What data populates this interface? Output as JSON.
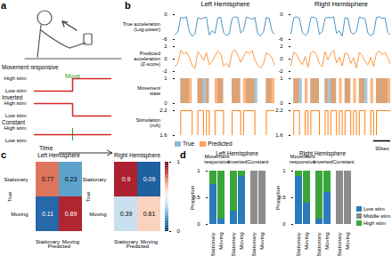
{
  "chart_data": [
    {
      "panel": "a",
      "type": "step",
      "x_label": "Time",
      "annotation": "Move",
      "move_x": 1,
      "x": [
        0,
        1,
        2
      ],
      "xlim": [
        0,
        2
      ],
      "ylim": [
        0,
        1
      ],
      "yticks": [
        {
          "value": 1,
          "label": "High stim"
        },
        {
          "value": 0,
          "label": "Low stim"
        }
      ],
      "tick_labels": "y",
      "series": [
        {
          "name": "Movement responsive",
          "color": "#d62728",
          "values": [
            0,
            1,
            1
          ]
        },
        {
          "name": "Inverted",
          "color": "#d62728",
          "values": [
            1,
            0,
            0
          ]
        },
        {
          "name": "Constant",
          "color": "#d62728",
          "values": [
            0.5,
            0.5,
            0.5
          ]
        }
      ]
    },
    {
      "panel": "b",
      "type": "line",
      "x": [
        0,
        5,
        10,
        15,
        20,
        25,
        30,
        35,
        40,
        45,
        50,
        55,
        60,
        65,
        70,
        75,
        80,
        85,
        90,
        95,
        100,
        105,
        110,
        115,
        120,
        125,
        130,
        135,
        140,
        145,
        150,
        155,
        160,
        165,
        170,
        175
      ],
      "xlim": [
        0,
        175
      ],
      "tick_labels": "y",
      "legend": "bottom",
      "scale_bar": {
        "value": 30,
        "label": "30sec"
      },
      "rows": [
        {
          "label": [
            "True acceleration",
            "(Log-power)"
          ],
          "type": "line",
          "ylim": [
            -6,
            0
          ],
          "yticks": [
            -6,
            0
          ]
        },
        {
          "label": [
            "Predicted",
            "acceleration",
            "(Z-score)"
          ],
          "type": "line",
          "ylim": [
            -2,
            2
          ],
          "yticks": [
            -2,
            0,
            2
          ]
        },
        {
          "label": [
            "Movement",
            "state"
          ],
          "type": "area",
          "ylim": [
            0,
            1
          ],
          "yticks": [
            0,
            1
          ]
        },
        {
          "label": [
            "Stimulation",
            "(mA)"
          ],
          "type": "step",
          "ylim": [
            1.6,
            2.2
          ],
          "yticks": [
            1.6,
            2.2
          ]
        }
      ],
      "hemispheres": [
        {
          "title": "Left Hemisphere",
          "rows": [
            [
              {
                "color": "#1f77b4",
                "values": [
                  -4.8,
                  -4.2,
                  -0.6,
                  -0.9,
                  -0.5,
                  -4.1,
                  -5.2,
                  -4.6,
                  -0.7,
                  -1.0,
                  -0.8,
                  -0.6,
                  -4.9,
                  -3.9,
                  -4.5,
                  -0.8,
                  -0.6,
                  -4.3,
                  -5.0,
                  -4.7,
                  -0.9,
                  -0.5,
                  -0.7,
                  -4.4,
                  -3.8,
                  -0.6,
                  -0.8,
                  -1.1,
                  -0.7,
                  -4.6,
                  -5.1,
                  -4.2,
                  -0.7,
                  -0.9,
                  -4.0,
                  -4.8
                ]
              }
            ],
            [
              {
                "color": "#ff7f0e",
                "values": [
                  -1.2,
                  -0.6,
                  1.4,
                  0.8,
                  1.1,
                  0.3,
                  -1.0,
                  -1.5,
                  1.2,
                  0.6,
                  -0.2,
                  1.0,
                  -0.9,
                  -0.4,
                  0.5,
                  1.3,
                  0.9,
                  -1.1,
                  -0.7,
                  -1.3,
                  1.1,
                  1.5,
                  0.7,
                  -0.5,
                  0.4,
                  1.2,
                  0.9,
                  1.4,
                  -0.1,
                  -1.0,
                  -1.4,
                  -0.8,
                  1.0,
                  0.7,
                  0.2,
                  -1.2
                ]
              }
            ],
            [
              {
                "name": "True",
                "color": "#6baed6",
                "values": [
                  0,
                  0,
                  1,
                  1,
                  1,
                  0,
                  0,
                  0,
                  1,
                  1,
                  1,
                  1,
                  0,
                  0,
                  0,
                  1,
                  1,
                  0,
                  0,
                  0,
                  1,
                  1,
                  1,
                  0,
                  0,
                  1,
                  1,
                  1,
                  1,
                  0,
                  0,
                  0,
                  1,
                  1,
                  0,
                  0
                ]
              },
              {
                "name": "Predicted",
                "color": "#fd8d3c",
                "values": [
                  0,
                  0,
                  1,
                  1,
                  1,
                  1,
                  0,
                  0,
                  1,
                  1,
                  0,
                  1,
                  0,
                  0,
                  1,
                  1,
                  1,
                  0,
                  0,
                  0,
                  1,
                  1,
                  1,
                  0,
                  1,
                  1,
                  1,
                  1,
                  0,
                  0,
                  0,
                  0,
                  1,
                  1,
                  1,
                  0
                ]
              }
            ],
            [
              {
                "color": "#ff7f0e",
                "values": [
                  1.6,
                  1.6,
                  2.2,
                  2.2,
                  2.2,
                  2.2,
                  1.6,
                  1.6,
                  2.2,
                  2.2,
                  1.6,
                  2.2,
                  1.6,
                  1.6,
                  2.2,
                  2.2,
                  2.2,
                  1.6,
                  1.6,
                  1.6,
                  2.2,
                  2.2,
                  2.2,
                  1.6,
                  2.2,
                  2.2,
                  2.2,
                  2.2,
                  1.6,
                  1.6,
                  1.6,
                  1.6,
                  2.2,
                  2.2,
                  2.2,
                  1.6
                ]
              }
            ]
          ]
        },
        {
          "title": "Right Hemisphere",
          "rows": [
            [
              {
                "color": "#1f77b4",
                "values": [
                  -4.6,
                  -0.8,
                  -0.5,
                  -0.9,
                  -4.3,
                  -5.0,
                  -4.4,
                  -0.7,
                  -0.6,
                  -1.0,
                  -4.8,
                  -4.1,
                  -0.9,
                  -0.6,
                  -0.8,
                  -0.5,
                  -4.5,
                  -3.9,
                  -5.2,
                  -0.7,
                  -0.9,
                  -4.2,
                  -4.7,
                  -4.0,
                  -0.6,
                  -0.8,
                  -1.0,
                  -4.4,
                  -5.1,
                  -4.6,
                  -0.7,
                  -0.5,
                  -0.9,
                  -0.8,
                  -4.3,
                  -4.9
                ]
              }
            ],
            [
              {
                "color": "#ff7f0e",
                "values": [
                  -1.0,
                  1.1,
                  0.8,
                  -0.2,
                  -0.9,
                  0.4,
                  -1.3,
                  1.0,
                  1.3,
                  0.7,
                  -0.8,
                  -1.2,
                  1.2,
                  -0.1,
                  0.9,
                  1.4,
                  -0.6,
                  0.3,
                  -1.1,
                  1.0,
                  0.8,
                  -0.7,
                  0.2,
                  -1.4,
                  1.1,
                  0.6,
                  -0.3,
                  -0.9,
                  0.3,
                  -1.2,
                  0.9,
                  1.3,
                  0.7,
                  1.1,
                  0.2,
                  -1.0
                ]
              }
            ],
            [
              {
                "name": "True",
                "color": "#6baed6",
                "values": [
                  0,
                  1,
                  1,
                  1,
                  0,
                  0,
                  0,
                  1,
                  1,
                  1,
                  0,
                  0,
                  1,
                  1,
                  1,
                  1,
                  0,
                  0,
                  0,
                  1,
                  1,
                  0,
                  0,
                  0,
                  1,
                  1,
                  1,
                  0,
                  0,
                  0,
                  1,
                  1,
                  1,
                  1,
                  0,
                  0
                ]
              },
              {
                "name": "Predicted",
                "color": "#fd8d3c",
                "values": [
                  0,
                  1,
                  1,
                  0,
                  0,
                  1,
                  0,
                  1,
                  1,
                  1,
                  0,
                  0,
                  1,
                  0,
                  1,
                  1,
                  0,
                  1,
                  0,
                  1,
                  1,
                  0,
                  1,
                  0,
                  1,
                  1,
                  0,
                  0,
                  1,
                  0,
                  1,
                  1,
                  1,
                  1,
                  1,
                  0
                ]
              }
            ],
            [
              {
                "color": "#ff7f0e",
                "values": [
                  1.6,
                  2.2,
                  2.2,
                  1.6,
                  1.6,
                  2.2,
                  1.6,
                  2.2,
                  2.2,
                  2.2,
                  1.6,
                  1.6,
                  2.2,
                  1.6,
                  2.2,
                  2.2,
                  1.6,
                  2.2,
                  1.6,
                  2.2,
                  2.2,
                  1.6,
                  2.2,
                  1.6,
                  2.2,
                  2.2,
                  1.6,
                  1.6,
                  2.2,
                  1.6,
                  2.2,
                  2.2,
                  2.2,
                  2.2,
                  2.2,
                  1.6
                ]
              }
            ]
          ]
        }
      ]
    },
    {
      "panel": "c",
      "type": "heatmap",
      "x_label": "Predicted",
      "y_label": "True",
      "categories": [
        "Stationary",
        "Moving"
      ],
      "data_labels": true,
      "colorbar": {
        "lim": [
          0,
          1
        ],
        "ticks": [
          0,
          1
        ]
      },
      "charts": [
        {
          "title": "Left Hemisphere",
          "cells": [
            [
              0.77,
              0.23
            ],
            [
              0.11,
              0.89
            ]
          ]
        },
        {
          "title": "Right Hemisphere",
          "cells": [
            [
              0.9,
              0.09
            ],
            [
              0.39,
              0.61
            ]
          ]
        }
      ]
    },
    {
      "panel": "d",
      "type": "bar",
      "stacked": true,
      "y_label": "Proportion",
      "ylim": [
        0,
        1
      ],
      "yticks": [
        0,
        0.5,
        1
      ],
      "legend": "right",
      "groups": [
        "Movement responsive",
        "Movement responsive",
        "Inverted",
        "Inverted",
        "Constant",
        "Constant"
      ],
      "categories": [
        "Stationary",
        "Moving",
        "Stationary",
        "Moving",
        "Stationary",
        "Moving"
      ],
      "charts": [
        {
          "title": "Left Hemisphere",
          "series": [
            {
              "name": "Low stim",
              "color": "#2b7bba",
              "values": [
                0.75,
                0.1,
                0.25,
                0.9,
                0,
                0
              ]
            },
            {
              "name": "Middle stim",
              "color": "#8c8c8c",
              "values": [
                0,
                0,
                0,
                0,
                1,
                1
              ]
            },
            {
              "name": "High stim",
              "color": "#3aa63a",
              "values": [
                0.25,
                0.9,
                0.75,
                0.1,
                0,
                0
              ]
            }
          ]
        },
        {
          "title": "Right Hemisphere",
          "series": [
            {
              "name": "Low stim",
              "color": "#2b7bba",
              "values": [
                0.9,
                0.4,
                0.1,
                0.6,
                0,
                0
              ]
            },
            {
              "name": "Middle stim",
              "color": "#8c8c8c",
              "values": [
                0,
                0,
                0,
                0,
                1,
                1
              ]
            },
            {
              "name": "High stim",
              "color": "#3aa63a",
              "values": [
                0.1,
                0.6,
                0.9,
                0.4,
                0,
                0
              ]
            }
          ]
        }
      ]
    }
  ]
}
